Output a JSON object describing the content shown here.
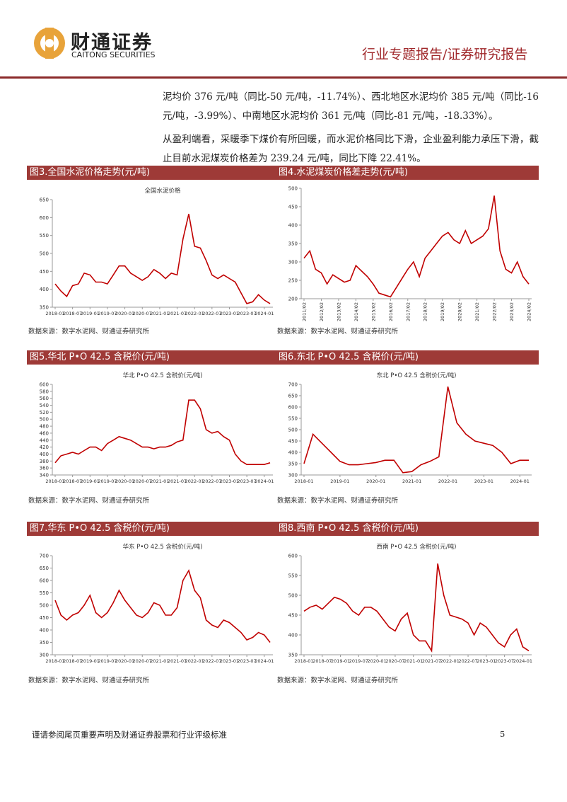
{
  "header": {
    "brand_cn": "财通证券",
    "brand_en": "CAITONG SECURITIES",
    "report_type": "行业专题报告/证券研究报告"
  },
  "paragraphs": [
    "泥均价 376 元/吨（同比-50 元/吨，-11.74%）、西北地区水泥均价 385 元/吨（同比-16 元/吨，-3.99%）、中南地区水泥均价 361 元/吨（同比-81 元/吨，-18.33%）。",
    "从盈利端看，采暖季下煤价有所回暖，而水泥价格同比下滑，企业盈利能力承压下滑，截止目前水泥煤炭价格差为 239.24 元/吨，同比下降 22.41%。"
  ],
  "chart_data": [
    {
      "type": "line",
      "title": "图3.全国水泥价格走势(元/吨)",
      "subtitle": "全国水泥价格",
      "source": "数据来源：数字水泥网、财通证券研究所",
      "categories": [
        "2018-01",
        null,
        null,
        "2018-07",
        null,
        null,
        "2019-01",
        null,
        null,
        "2019-07",
        null,
        null,
        "2020-01",
        null,
        null,
        "2020-07",
        null,
        null,
        "2021-01",
        null,
        null,
        "2021-07",
        null,
        null,
        "2022-01",
        null,
        null,
        "2022-07",
        null,
        null,
        "2023-01",
        null,
        null,
        "2023-07",
        null,
        null,
        "2024-01",
        null
      ],
      "series": [
        {
          "color": "#c00000",
          "values": [
            415,
            395,
            380,
            410,
            415,
            445,
            440,
            420,
            420,
            415,
            440,
            465,
            465,
            445,
            435,
            425,
            435,
            455,
            445,
            430,
            445,
            440,
            540,
            610,
            520,
            515,
            480,
            440,
            430,
            440,
            430,
            420,
            390,
            360,
            365,
            385,
            370,
            360
          ]
        }
      ],
      "ylim": [
        350,
        650
      ],
      "yticks": [
        350,
        400,
        450,
        500,
        550,
        600,
        650
      ]
    },
    {
      "type": "line",
      "title": "图4.水泥煤炭价格差走势(元/吨)",
      "source": "数据来源：数字水泥网、财通证券研究所",
      "categories": [
        "2011/02",
        null,
        null,
        "2012/02",
        null,
        null,
        "2013/02",
        null,
        null,
        "2014/02",
        null,
        null,
        "2015/02",
        null,
        null,
        "2016/02",
        null,
        null,
        "2017/02",
        null,
        null,
        "2018/02",
        null,
        null,
        "2019/02",
        null,
        null,
        "2020/02",
        null,
        null,
        "2021/02",
        null,
        null,
        "2022/02",
        null,
        null,
        "2023/02",
        null,
        null,
        "2024/02"
      ],
      "series": [
        {
          "color": "#c00000",
          "values": [
            310,
            330,
            280,
            270,
            240,
            265,
            255,
            245,
            250,
            290,
            275,
            260,
            240,
            215,
            210,
            205,
            230,
            255,
            280,
            300,
            260,
            310,
            330,
            350,
            370,
            380,
            360,
            350,
            385,
            350,
            360,
            370,
            390,
            480,
            330,
            280,
            270,
            300,
            260,
            240
          ]
        }
      ],
      "ylim": [
        200,
        500
      ],
      "yticks": [
        200,
        250,
        300,
        350,
        400,
        450,
        500
      ]
    },
    {
      "type": "line",
      "title": "图5.华北 P•O 42.5 含税价(元/吨)",
      "subtitle": "华北 P•O 42.5 含税价(元/吨)",
      "source": "数据来源：数字水泥网、财通证券研究所",
      "categories": [
        "2018-01",
        null,
        null,
        "2018-07",
        null,
        null,
        "2019-01",
        null,
        null,
        "2019-07",
        null,
        null,
        "2020-01",
        null,
        null,
        "2020-07",
        null,
        null,
        "2021-01",
        null,
        null,
        "2021-07",
        null,
        null,
        "2022-01",
        null,
        null,
        "2022-07",
        null,
        null,
        "2023-01",
        null,
        null,
        "2023-07",
        null,
        null,
        "2024-01",
        null
      ],
      "series": [
        {
          "color": "#c00000",
          "values": [
            375,
            395,
            400,
            405,
            400,
            410,
            420,
            420,
            410,
            430,
            440,
            450,
            445,
            440,
            430,
            420,
            420,
            415,
            420,
            420,
            425,
            435,
            440,
            555,
            555,
            530,
            470,
            460,
            465,
            450,
            440,
            400,
            380,
            370,
            370,
            370,
            370,
            375
          ]
        }
      ],
      "ylim": [
        340,
        600
      ],
      "yticks": [
        340,
        360,
        380,
        400,
        420,
        440,
        460,
        480,
        500,
        520,
        540,
        560,
        580,
        600
      ]
    },
    {
      "type": "line",
      "title": "图6.东北 P•O 42.5 含税价(元/吨)",
      "subtitle": "东北 P•O 42.5 含税价(元/吨)",
      "source": "数据来源：数字水泥网、财通证券研究所",
      "categories": [
        "2018-01",
        null,
        null,
        null,
        "2019-01",
        null,
        null,
        null,
        "2020-01",
        null,
        null,
        null,
        "2021-01",
        null,
        null,
        null,
        "2022-01",
        null,
        null,
        null,
        "2023-01",
        null,
        null,
        null,
        "2024-01",
        null
      ],
      "series": [
        {
          "color": "#c00000",
          "values": [
            350,
            480,
            440,
            400,
            360,
            345,
            345,
            350,
            355,
            365,
            365,
            310,
            315,
            345,
            360,
            380,
            690,
            530,
            480,
            450,
            440,
            430,
            400,
            350,
            365,
            365
          ]
        }
      ],
      "ylim": [
        300,
        700
      ],
      "yticks": [
        300,
        350,
        400,
        450,
        500,
        550,
        600,
        650,
        700
      ]
    },
    {
      "type": "line",
      "title": "图7.华东 P•O 42.5 含税价(元/吨)",
      "subtitle": "华东 P•O 42.5 含税价(元/吨)",
      "source": "数据来源：数字水泥网、财通证券研究所",
      "categories": [
        "2018-01",
        null,
        null,
        "2018-07",
        null,
        null,
        "2019-01",
        null,
        null,
        "2019-07",
        null,
        null,
        "2020-01",
        null,
        null,
        "2020-07",
        null,
        null,
        "2021-01",
        null,
        null,
        "2021-07",
        null,
        null,
        "2022-01",
        null,
        null,
        "2022-07",
        null,
        null,
        "2023-01",
        null,
        null,
        "2023-07",
        null,
        null,
        "2024-01",
        null
      ],
      "series": [
        {
          "color": "#c00000",
          "values": [
            520,
            460,
            440,
            460,
            470,
            500,
            540,
            470,
            450,
            470,
            510,
            560,
            520,
            490,
            460,
            450,
            470,
            510,
            500,
            460,
            460,
            490,
            600,
            640,
            560,
            530,
            440,
            420,
            410,
            440,
            430,
            410,
            390,
            360,
            370,
            390,
            380,
            350
          ]
        }
      ],
      "ylim": [
        300,
        700
      ],
      "yticks": [
        300,
        350,
        400,
        450,
        500,
        550,
        600,
        650,
        700
      ]
    },
    {
      "type": "line",
      "title": "图8.西南 P•O 42.5 含税价(元/吨)",
      "subtitle": "西南 P•O 42.5 含税价(元/吨)",
      "source": "数据来源：数字水泥网、财通证券研究所",
      "categories": [
        "2018-01",
        null,
        null,
        "2018-07",
        null,
        null,
        "2019-01",
        null,
        null,
        "2019-07",
        null,
        null,
        "2020-01",
        null,
        null,
        "2020-07",
        null,
        null,
        "2021-01",
        null,
        null,
        "2021-07",
        null,
        null,
        "2022-01",
        null,
        null,
        "2022-07",
        null,
        null,
        "2023-01",
        null,
        null,
        "2023-07",
        null,
        null,
        "2024-01",
        null
      ],
      "series": [
        {
          "color": "#c00000",
          "values": [
            460,
            470,
            475,
            465,
            480,
            495,
            490,
            480,
            460,
            450,
            470,
            470,
            460,
            440,
            420,
            410,
            440,
            455,
            400,
            385,
            385,
            360,
            580,
            500,
            450,
            445,
            440,
            430,
            400,
            430,
            420,
            400,
            380,
            370,
            400,
            415,
            370,
            360
          ]
        }
      ],
      "ylim": [
        350,
        600
      ],
      "yticks": [
        350,
        400,
        450,
        500,
        550,
        600
      ]
    }
  ],
  "footer": {
    "disclaimer": "谨请参阅尾页重要声明及财通证券股票和行业评级标准",
    "page": "5"
  }
}
